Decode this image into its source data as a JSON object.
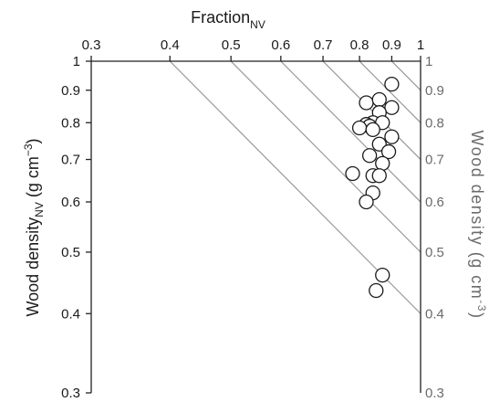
{
  "chart_data": {
    "type": "scatter",
    "x_axis": {
      "label_main": "Fraction",
      "label_sub": "NV",
      "scale": "log",
      "range": [
        0.3,
        1
      ],
      "ticks": [
        0.3,
        0.4,
        0.5,
        0.6,
        0.7,
        0.8,
        0.9,
        1
      ],
      "tick_labels": [
        "0.3",
        "0.4",
        "0.5",
        "0.6",
        "0.7",
        "0.8",
        "0.9",
        "1"
      ],
      "position": "top"
    },
    "y_axis": {
      "label_main": "Wood density",
      "label_sub": "NV",
      "label_units_pre": " (g cm",
      "label_units_sup": "−3",
      "label_units_post": ")",
      "scale": "log",
      "range": [
        0.3,
        1
      ],
      "ticks": [
        0.3,
        0.4,
        0.5,
        0.6,
        0.7,
        0.8,
        0.9,
        1
      ],
      "tick_labels": [
        "0.3",
        "0.4",
        "0.5",
        "0.6",
        "0.7",
        "0.8",
        "0.9",
        "1"
      ],
      "position": "left"
    },
    "right_axis": {
      "label_main": "Wood density (g cm",
      "label_sup": "-3",
      "label_post": ")",
      "tick_labels": [
        {
          "value": 1,
          "label": "1"
        },
        {
          "value": 0.9,
          "label": "0.9"
        },
        {
          "value": 0.8,
          "label": "0.8"
        },
        {
          "value": 0.7,
          "label": "0.7"
        },
        {
          "value": 0.6,
          "label": "0.6"
        },
        {
          "value": 0.5,
          "label": "0.5"
        },
        {
          "value": 0.4,
          "label": "0.4"
        },
        {
          "value": 0.3,
          "label": "0.3"
        }
      ],
      "color": "#6b6b6b"
    },
    "isolines": [
      1,
      0.9,
      0.8,
      0.7,
      0.6,
      0.5,
      0.4
    ],
    "grid": false,
    "points": [
      {
        "x": 0.9,
        "y": 0.92
      },
      {
        "x": 0.82,
        "y": 0.86
      },
      {
        "x": 0.86,
        "y": 0.87
      },
      {
        "x": 0.9,
        "y": 0.845
      },
      {
        "x": 0.86,
        "y": 0.83
      },
      {
        "x": 0.84,
        "y": 0.8
      },
      {
        "x": 0.82,
        "y": 0.795
      },
      {
        "x": 0.87,
        "y": 0.8
      },
      {
        "x": 0.83,
        "y": 0.79
      },
      {
        "x": 0.8,
        "y": 0.785
      },
      {
        "x": 0.84,
        "y": 0.78
      },
      {
        "x": 0.9,
        "y": 0.76
      },
      {
        "x": 0.86,
        "y": 0.74
      },
      {
        "x": 0.89,
        "y": 0.72
      },
      {
        "x": 0.83,
        "y": 0.71
      },
      {
        "x": 0.87,
        "y": 0.69
      },
      {
        "x": 0.78,
        "y": 0.665
      },
      {
        "x": 0.84,
        "y": 0.66
      },
      {
        "x": 0.86,
        "y": 0.66
      },
      {
        "x": 0.84,
        "y": 0.62
      },
      {
        "x": 0.82,
        "y": 0.6
      },
      {
        "x": 0.87,
        "y": 0.46
      },
      {
        "x": 0.85,
        "y": 0.435
      }
    ],
    "colors": {
      "axis": "#222222",
      "isoline": "#9a9a9a",
      "marker_fill": "#ffffff",
      "marker_stroke": "#1a1a1a",
      "right_axis": "#6b6b6b"
    }
  }
}
